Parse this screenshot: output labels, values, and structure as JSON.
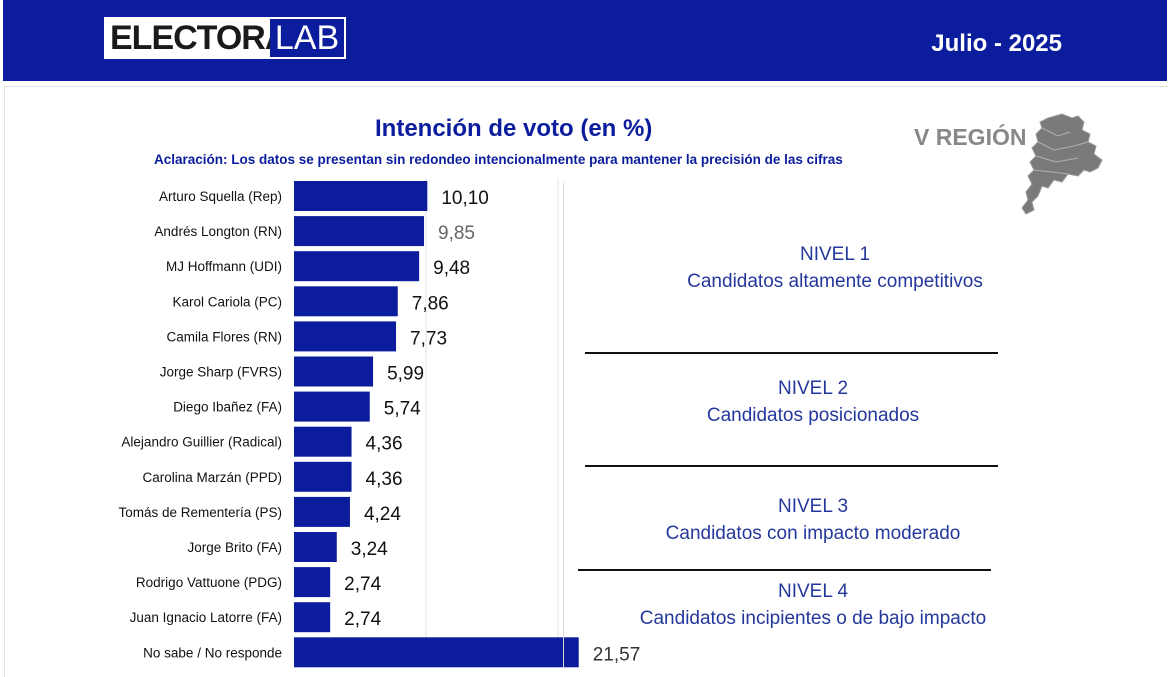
{
  "header": {
    "logo_left": "ELECTORA",
    "logo_right": "LAB",
    "date": "Julio - 2025"
  },
  "region": {
    "label": "V REGIÓN",
    "map_icon": "region-map-icon"
  },
  "colors": {
    "brand": "#0b1d9c",
    "bar": "#0b1d9c",
    "level_text": "#24389c",
    "region_gray": "#888888"
  },
  "chart_data": {
    "type": "bar",
    "orientation": "horizontal",
    "title": "Intención de voto  (en %)",
    "subtitle": "Aclaración: Los datos se presentan sin redondeo intencionalmente para mantener la precisión de las cifras",
    "categories": [
      "Arturo Squella (Rep)",
      "Andrés Longton (RN)",
      "MJ Hoffmann (UDI)",
      "Karol Cariola (PC)",
      "Camila Flores (RN)",
      "Jorge Sharp (FVRS)",
      "Diego Ibañez (FA)",
      "Alejandro Guillier (Radical)",
      "Carolina Marzán (PPD)",
      "Tomás de Rementería (PS)",
      "Jorge Brito (FA)",
      "Rodrigo Vattuone (PDG)",
      "Juan Ignacio Latorre (FA)",
      "No sabe / No responde"
    ],
    "values": [
      10.1,
      9.85,
      9.48,
      7.86,
      7.73,
      5.99,
      5.74,
      4.36,
      4.36,
      4.24,
      3.24,
      2.74,
      2.74,
      21.57
    ],
    "labels": [
      "10,10",
      "9,85",
      "9,48",
      "7,86",
      "7,73",
      "5,99",
      "5,74",
      "4,36",
      "4,36",
      "4,24",
      "3,24",
      "2,74",
      "2,74",
      "21,57"
    ],
    "label_colors": [
      "#111111",
      "#666666",
      "#111111",
      "#111111",
      "#111111",
      "#111111",
      "#111111",
      "#111111",
      "#111111",
      "#111111",
      "#111111",
      "#111111",
      "#111111",
      "#333333"
    ],
    "xlim": [
      0,
      22
    ],
    "grid": "vertical",
    "legend": "none"
  },
  "levels": [
    {
      "title": "NIVEL 1",
      "desc": "Candidatos altamente competitivos"
    },
    {
      "title": "NIVEL 2",
      "desc": "Candidatos posicionados"
    },
    {
      "title": "NIVEL 3",
      "desc": "Candidatos con impacto moderado"
    },
    {
      "title": "NIVEL 4",
      "desc": "Candidatos incipientes o de bajo impacto"
    }
  ]
}
